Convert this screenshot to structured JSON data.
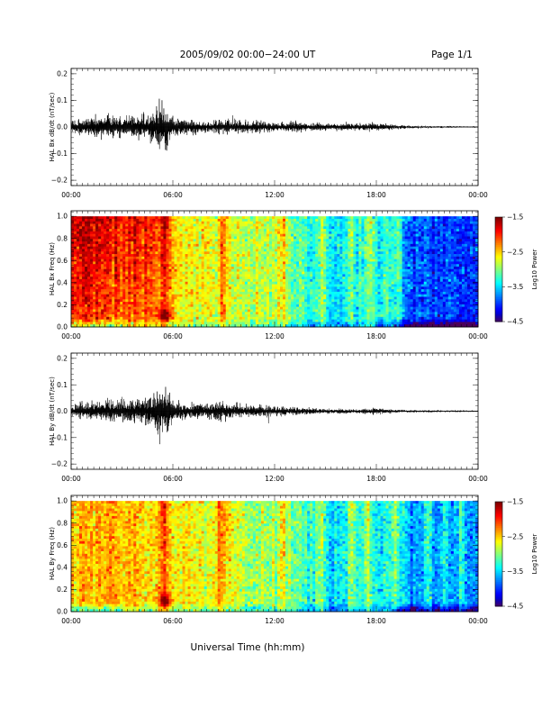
{
  "header": {
    "title": "2005/09/02  00:00−24:00 UT",
    "page": "Page 1/1"
  },
  "footer": {
    "xlabel": "Universal Time (hh:mm)"
  },
  "colors": {
    "background": "#ffffff",
    "trace": "#000000"
  },
  "chart_data": [
    {
      "type": "line",
      "name": "bx-timeseries",
      "ylabel": "HAL Bx dB/dt (nT/sec)",
      "xlim": [
        0,
        24
      ],
      "ylim": [
        -0.22,
        0.22
      ],
      "yticks": [
        "0.2",
        "0.1",
        "0.0",
        "−0.1",
        "−0.2"
      ],
      "ytick_values": [
        0.2,
        0.1,
        0.0,
        -0.1,
        -0.2
      ],
      "xticks": [
        "00:00",
        "06:00",
        "12:00",
        "18:00",
        "00:00"
      ],
      "xtick_values": [
        0,
        6,
        12,
        18,
        24
      ],
      "envelope": {
        "hours": [
          0,
          1,
          2,
          3,
          4,
          4.5,
          5,
          5.3,
          5.6,
          6,
          6.5,
          7,
          8,
          9,
          10,
          11,
          12,
          13,
          14,
          15,
          16,
          17,
          18,
          19,
          20,
          21,
          22,
          23,
          24
        ],
        "upper": [
          0.025,
          0.035,
          0.045,
          0.04,
          0.05,
          0.045,
          0.07,
          0.09,
          0.08,
          0.04,
          0.03,
          0.025,
          0.02,
          0.03,
          0.025,
          0.02,
          0.015,
          0.02,
          0.015,
          0.012,
          0.012,
          0.012,
          0.015,
          0.008,
          0.005,
          0.004,
          0.003,
          0.003,
          0.002
        ],
        "lower": [
          -0.025,
          -0.035,
          -0.04,
          -0.04,
          -0.045,
          -0.04,
          -0.07,
          -0.1,
          -0.08,
          -0.04,
          -0.03,
          -0.025,
          -0.02,
          -0.025,
          -0.02,
          -0.02,
          -0.015,
          -0.02,
          -0.015,
          -0.012,
          -0.012,
          -0.012,
          -0.015,
          -0.008,
          -0.005,
          -0.004,
          -0.003,
          -0.003,
          -0.002
        ]
      }
    },
    {
      "type": "heatmap",
      "name": "bx-spectrogram",
      "ylabel": "HAL Bx Freq (Hz)",
      "xlim": [
        0,
        24
      ],
      "ylim": [
        0,
        1.05
      ],
      "yticks": [
        "1.0",
        "0.8",
        "0.6",
        "0.4",
        "0.2",
        "0.0"
      ],
      "ytick_values": [
        1.0,
        0.8,
        0.6,
        0.4,
        0.2,
        0.0
      ],
      "xticks": [
        "00:00",
        "06:00",
        "12:00",
        "18:00",
        "00:00"
      ],
      "xtick_values": [
        0,
        6,
        12,
        18,
        24
      ],
      "colorbar": {
        "label": "Log10 Power",
        "ticks": [
          "−1.5",
          "−2.5",
          "−3.5",
          "−4.5"
        ],
        "tick_values": [
          -1.5,
          -2.5,
          -3.5,
          -4.5
        ],
        "range": [
          -4.5,
          -1.5
        ]
      },
      "base_level_by_hour": {
        "hours": [
          0,
          2,
          4,
          6,
          8,
          10,
          12,
          13,
          14,
          15,
          16,
          17,
          18,
          19,
          20,
          22,
          24
        ],
        "levels": [
          -2.0,
          -2.1,
          -2.2,
          -2.5,
          -2.6,
          -2.7,
          -2.9,
          -3.0,
          -3.2,
          -3.4,
          -3.4,
          -3.3,
          -3.3,
          -3.4,
          -3.9,
          -4.0,
          -4.0
        ]
      },
      "bright_events_hours": [
        5.5,
        9.0,
        12.5,
        14.8,
        16.5,
        17.6,
        19.3
      ],
      "low_freq_blob": {
        "hour": 5.5,
        "freq": 0.1,
        "level": -1.5
      }
    },
    {
      "type": "line",
      "name": "by-timeseries",
      "ylabel": "HAL By dB/dt (nT/sec)",
      "xlim": [
        0,
        24
      ],
      "ylim": [
        -0.22,
        0.22
      ],
      "yticks": [
        "0.2",
        "0.1",
        "0.0",
        "−0.1",
        "−0.2"
      ],
      "ytick_values": [
        0.2,
        0.1,
        0.0,
        -0.1,
        -0.2
      ],
      "xticks": [
        "00:00",
        "06:00",
        "12:00",
        "18:00",
        "00:00"
      ],
      "xtick_values": [
        0,
        6,
        12,
        18,
        24
      ],
      "envelope": {
        "hours": [
          0,
          1,
          2,
          3,
          4,
          4.5,
          5,
          5.3,
          5.6,
          6,
          6.5,
          7,
          8,
          8.5,
          9,
          10,
          11,
          12,
          13,
          14,
          15,
          16,
          17,
          18,
          19,
          20,
          21,
          22,
          23,
          24
        ],
        "upper": [
          0.025,
          0.035,
          0.04,
          0.05,
          0.045,
          0.05,
          0.07,
          0.08,
          0.07,
          0.04,
          0.03,
          0.03,
          0.025,
          0.04,
          0.03,
          0.025,
          0.02,
          0.02,
          0.015,
          0.012,
          0.008,
          0.008,
          0.008,
          0.012,
          0.006,
          0.004,
          0.004,
          0.003,
          0.003,
          0.002
        ],
        "lower": [
          -0.02,
          -0.03,
          -0.035,
          -0.04,
          -0.04,
          -0.05,
          -0.08,
          -0.1,
          -0.08,
          -0.04,
          -0.03,
          -0.025,
          -0.02,
          -0.035,
          -0.03,
          -0.02,
          -0.02,
          -0.02,
          -0.015,
          -0.012,
          -0.008,
          -0.008,
          -0.008,
          -0.012,
          -0.006,
          -0.004,
          -0.004,
          -0.003,
          -0.003,
          -0.002
        ]
      }
    },
    {
      "type": "heatmap",
      "name": "by-spectrogram",
      "ylabel": "HAL By Freq (Hz)",
      "xlim": [
        0,
        24
      ],
      "ylim": [
        0,
        1.05
      ],
      "yticks": [
        "1.0",
        "0.8",
        "0.6",
        "0.4",
        "0.2",
        "0.0"
      ],
      "ytick_values": [
        1.0,
        0.8,
        0.6,
        0.4,
        0.2,
        0.0
      ],
      "xticks": [
        "00:00",
        "06:00",
        "12:00",
        "18:00",
        "00:00"
      ],
      "xtick_values": [
        0,
        6,
        12,
        18,
        24
      ],
      "colorbar": {
        "label": "Log10 Power",
        "ticks": [
          "−1.5",
          "−2.5",
          "−3.5",
          "−4.5"
        ],
        "tick_values": [
          -1.5,
          -2.5,
          -3.5,
          -4.5
        ],
        "range": [
          -4.5,
          -1.5
        ]
      },
      "base_level_by_hour": {
        "hours": [
          0,
          2,
          4,
          6,
          8,
          10,
          12,
          13,
          14,
          15,
          16,
          17,
          18,
          19,
          20,
          22,
          24
        ],
        "levels": [
          -2.4,
          -2.4,
          -2.5,
          -2.6,
          -2.7,
          -2.8,
          -2.9,
          -3.0,
          -3.2,
          -3.4,
          -3.4,
          -3.3,
          -3.3,
          -3.3,
          -3.6,
          -3.7,
          -3.7
        ]
      },
      "bright_events_hours": [
        5.5,
        8.8,
        9.2,
        12.5,
        14.8,
        16.5,
        17.5,
        19.2,
        21.0,
        22.0,
        23.0
      ],
      "low_freq_blob": {
        "hour": 5.5,
        "freq": 0.1,
        "level": -1.6
      }
    }
  ]
}
